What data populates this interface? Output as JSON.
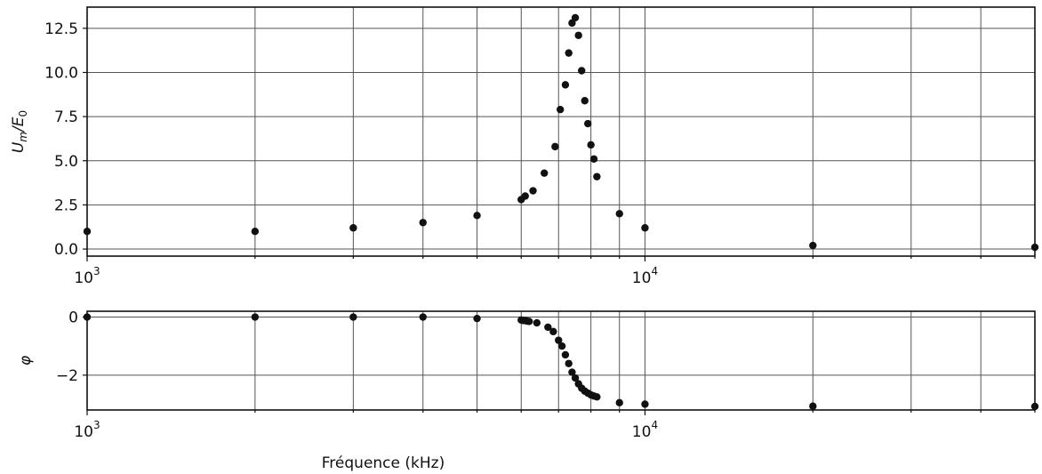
{
  "chart_data": [
    {
      "type": "scatter",
      "ylabel": "U_m/E_0",
      "xlabel": "",
      "x_scale": "log",
      "xlim": [
        1000,
        50000
      ],
      "ylim": [
        -0.4,
        13.7
      ],
      "grid": true,
      "x_major_ticks": [
        {
          "value": 1000,
          "base": "10",
          "exp": "3"
        },
        {
          "value": 10000,
          "base": "10",
          "exp": "4"
        }
      ],
      "y_ticks": [
        {
          "value": 0,
          "label": "0.0"
        },
        {
          "value": 2.5,
          "label": "2.5"
        },
        {
          "value": 5,
          "label": "5.0"
        },
        {
          "value": 7.5,
          "label": "7.5"
        },
        {
          "value": 10,
          "label": "10.0"
        },
        {
          "value": 12.5,
          "label": "12.5"
        }
      ],
      "x": [
        1000,
        2000,
        3000,
        4000,
        5000,
        6000,
        6100,
        6300,
        6600,
        6900,
        7050,
        7200,
        7300,
        7400,
        7500,
        7600,
        7700,
        7800,
        7900,
        8000,
        8100,
        8200,
        9000,
        10000,
        20000,
        50000
      ],
      "y": [
        1.0,
        1.0,
        1.2,
        1.5,
        1.9,
        2.8,
        3.0,
        3.3,
        4.3,
        5.8,
        7.9,
        9.3,
        11.1,
        12.8,
        13.1,
        12.1,
        10.1,
        8.4,
        7.1,
        5.9,
        5.1,
        4.1,
        2.0,
        1.2,
        0.2,
        0.1
      ]
    },
    {
      "type": "scatter",
      "ylabel": "φ",
      "xlabel": "Fréquence (kHz)",
      "x_scale": "log",
      "xlim": [
        1000,
        50000
      ],
      "ylim": [
        -3.2,
        0.2
      ],
      "grid": true,
      "x_major_ticks": [
        {
          "value": 1000,
          "base": "10",
          "exp": "3"
        },
        {
          "value": 10000,
          "base": "10",
          "exp": "4"
        }
      ],
      "y_ticks": [
        {
          "value": 0,
          "label": "0"
        },
        {
          "value": -2,
          "label": "−2"
        }
      ],
      "x": [
        1000,
        2000,
        3000,
        4000,
        5000,
        6000,
        6050,
        6100,
        6150,
        6200,
        6400,
        6700,
        6850,
        7000,
        7100,
        7200,
        7300,
        7400,
        7500,
        7600,
        7700,
        7800,
        7900,
        8000,
        8100,
        8200,
        9000,
        10000,
        20000,
        50000
      ],
      "y": [
        0.0,
        0.0,
        0.0,
        0.0,
        -0.05,
        -0.1,
        -0.12,
        -0.12,
        -0.14,
        -0.15,
        -0.2,
        -0.35,
        -0.5,
        -0.8,
        -1.0,
        -1.3,
        -1.6,
        -1.9,
        -2.1,
        -2.3,
        -2.45,
        -2.55,
        -2.62,
        -2.68,
        -2.72,
        -2.75,
        -2.95,
        -3.0,
        -3.07,
        -3.08
      ]
    }
  ]
}
